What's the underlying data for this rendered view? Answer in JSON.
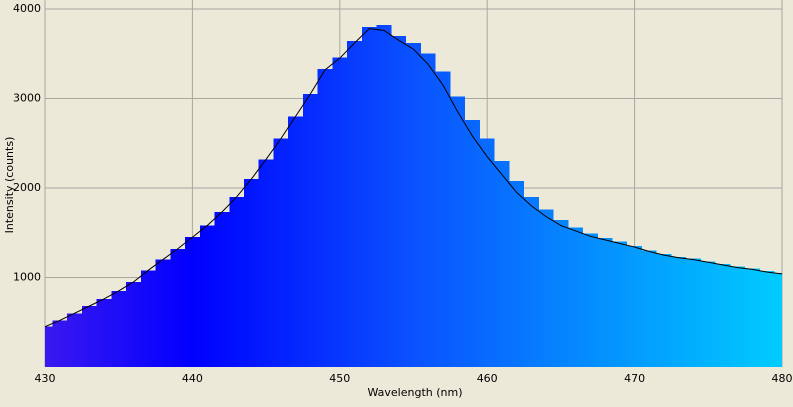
{
  "chart_data": {
    "type": "bar",
    "x_label": "Wavelength (nm)",
    "y_label": "Intensity (counts)",
    "xlim": [
      430,
      480
    ],
    "xticks": [
      430,
      440,
      450,
      460,
      470,
      480
    ],
    "ylim": [
      0,
      4100
    ],
    "yticks": [
      1000,
      2000,
      3000,
      4000
    ],
    "grid": true,
    "x": [
      430,
      431,
      432,
      433,
      434,
      435,
      436,
      437,
      438,
      439,
      440,
      441,
      442,
      443,
      444,
      445,
      446,
      447,
      448,
      449,
      450,
      451,
      452,
      453,
      454,
      455,
      456,
      457,
      458,
      459,
      460,
      461,
      462,
      463,
      464,
      465,
      466,
      467,
      468,
      469,
      470,
      471,
      472,
      473,
      474,
      475,
      476,
      477,
      478,
      479,
      480
    ],
    "series": [
      {
        "type": "bar",
        "color_stops": [
          {
            "x": 430,
            "color": "#3a18f0"
          },
          {
            "x": 440,
            "color": "#0000ff"
          },
          {
            "x": 455,
            "color": "#0a52ff"
          },
          {
            "x": 480,
            "color": "#00ccff"
          }
        ],
        "values": [
          450,
          520,
          600,
          680,
          760,
          850,
          950,
          1080,
          1200,
          1320,
          1450,
          1580,
          1730,
          1900,
          2100,
          2320,
          2550,
          2800,
          3050,
          3330,
          3460,
          3640,
          3800,
          3820,
          3700,
          3620,
          3500,
          3300,
          3020,
          2760,
          2550,
          2300,
          2080,
          1900,
          1760,
          1640,
          1560,
          1490,
          1440,
          1400,
          1350,
          1300,
          1260,
          1230,
          1210,
          1180,
          1150,
          1120,
          1100,
          1070,
          1050
        ]
      },
      {
        "type": "line",
        "color": "#000000",
        "values": [
          450,
          520,
          600,
          680,
          760,
          850,
          950,
          1080,
          1200,
          1320,
          1450,
          1580,
          1730,
          1900,
          2100,
          2320,
          2550,
          2800,
          3050,
          3320,
          3450,
          3620,
          3780,
          3760,
          3650,
          3550,
          3380,
          3150,
          2850,
          2580,
          2350,
          2150,
          1950,
          1800,
          1680,
          1580,
          1520,
          1460,
          1420,
          1380,
          1340,
          1290,
          1250,
          1220,
          1200,
          1170,
          1140,
          1110,
          1090,
          1060,
          1040
        ]
      }
    ]
  }
}
